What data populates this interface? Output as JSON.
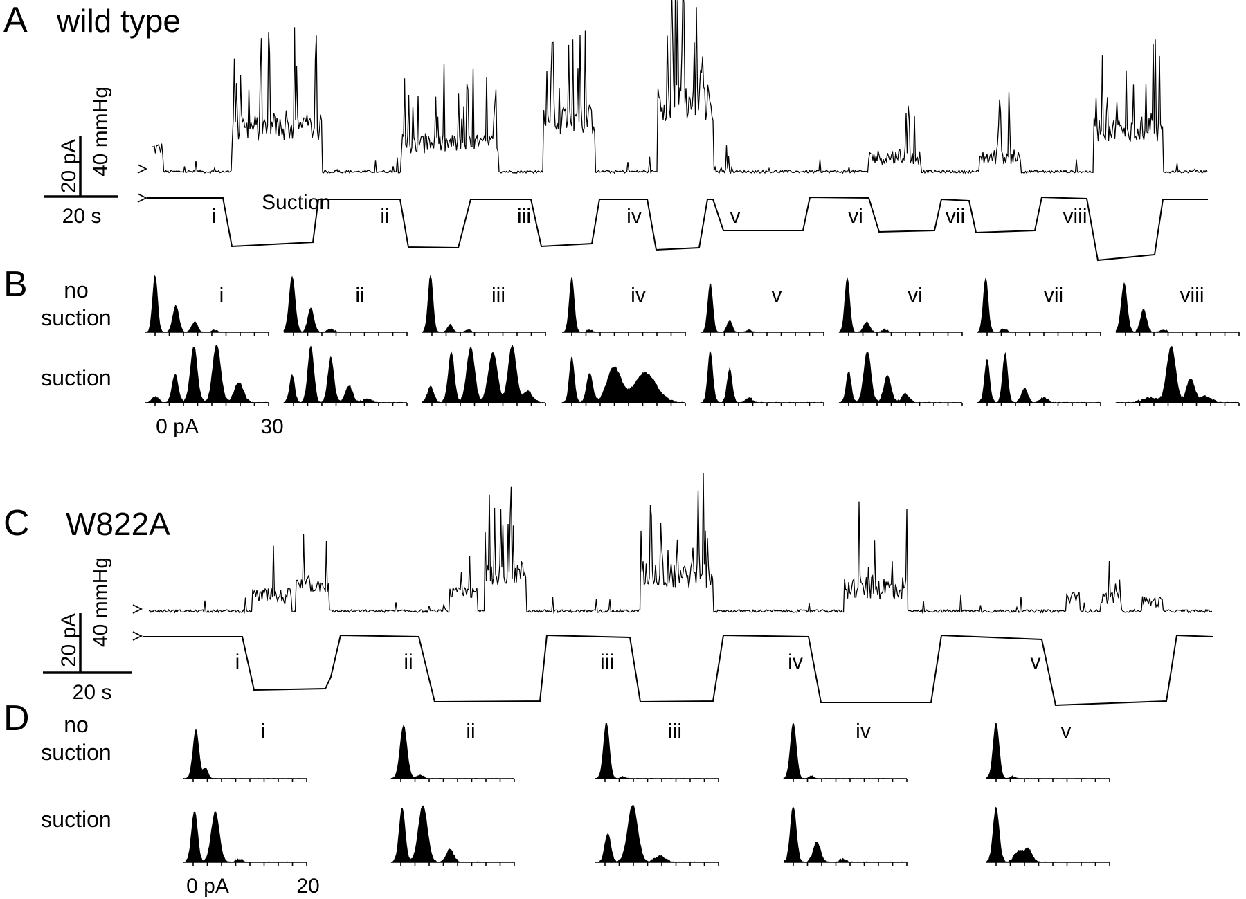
{
  "panel_a": {
    "letter": "A",
    "title": "wild type",
    "scale_current": "20 pA",
    "scale_pressure": "40 mmHg",
    "scale_time": "20 s",
    "suction_label": "Suction",
    "epochs": [
      "i",
      "ii",
      "iii",
      "iv",
      "v",
      "vi",
      "vii",
      "viii"
    ]
  },
  "panel_b": {
    "letter": "B",
    "row_no_suction": [
      "no",
      "suction"
    ],
    "row_suction": "suction",
    "axis_start": "0 pA",
    "axis_end": "30",
    "epochs": [
      "i",
      "ii",
      "iii",
      "iv",
      "v",
      "vi",
      "vii",
      "viii"
    ]
  },
  "panel_c": {
    "letter": "C",
    "title": "W822A",
    "scale_current": "20 pA",
    "scale_pressure": "40 mmHg",
    "scale_time": "20 s",
    "epochs": [
      "i",
      "ii",
      "iii",
      "iv",
      "v"
    ]
  },
  "panel_d": {
    "letter": "D",
    "row_no_suction": [
      "no",
      "suction"
    ],
    "row_suction": "suction",
    "axis_start": "0 pA",
    "axis_end": "20",
    "epochs": [
      "i",
      "ii",
      "iii",
      "iv",
      "v"
    ]
  }
}
